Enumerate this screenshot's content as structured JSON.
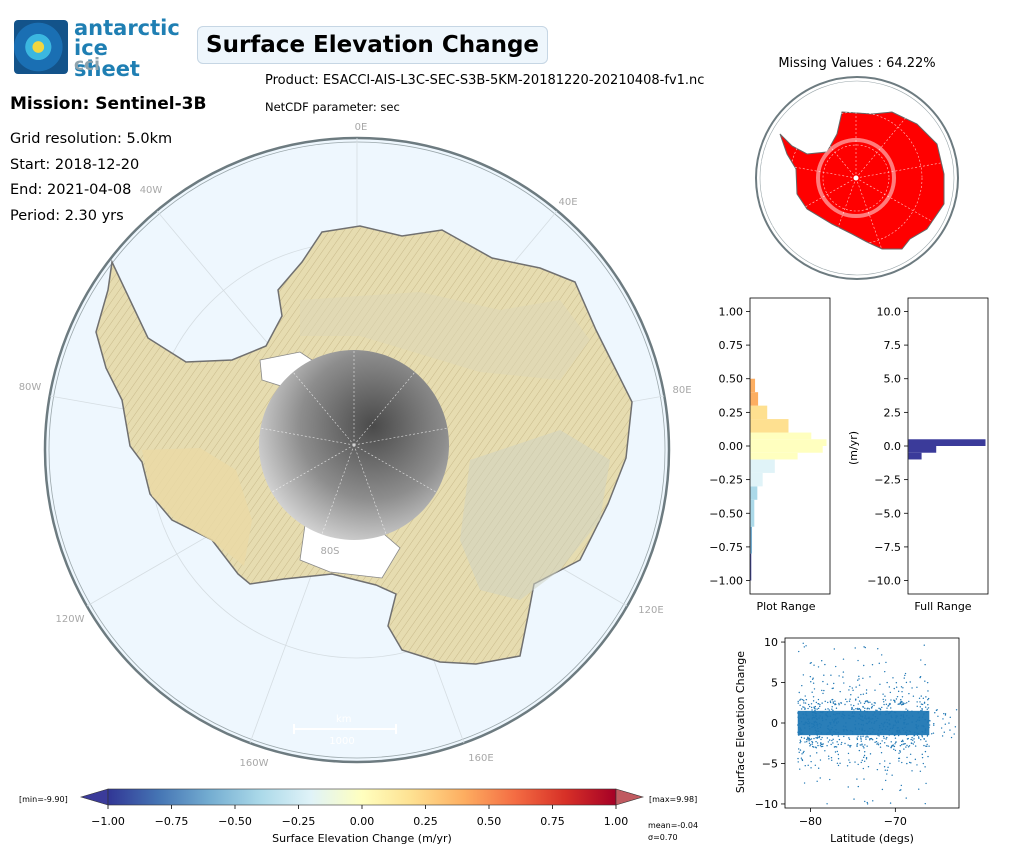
{
  "header": {
    "logo_line1": "antarctic",
    "logo_line2": "ice sheet",
    "logo_line3": "cci",
    "title": "Surface Elevation Change",
    "product": "Product: ESACCI-AIS-L3C-SEC-S3B-5KM-20181220-20210408-fv1.nc",
    "netcdf": "NetCDF parameter: sec"
  },
  "info": {
    "mission": "Mission: Sentinel-3B",
    "grid_resolution": "Grid resolution: 5.0km",
    "start": "Start: 2018-12-20",
    "end": "End: 2021-04-08",
    "period": "Period: 2.30 yrs"
  },
  "map": {
    "longitude_labels": [
      "0E",
      "40E",
      "80E",
      "120E",
      "160E",
      "160W",
      "120W",
      "80W",
      "40W"
    ],
    "latitude_label": "80S",
    "scalebar_unit": "km",
    "scalebar_value": "1000",
    "ocean_color": "#eef7fe",
    "missing_values_title": "Missing Values : 64.22%",
    "missing_color": "#ff0000"
  },
  "colorbar": {
    "ticks": [
      "−1.00",
      "−0.75",
      "−0.50",
      "−0.25",
      "0.00",
      "0.25",
      "0.50",
      "0.75",
      "1.00"
    ],
    "label": "Surface Elevation Change (m/yr)",
    "min_label": "[min=-9.90]",
    "max_label": "[max=9.98]",
    "mean_label": "mean=-0.04",
    "sigma_label": "σ=0.70",
    "colors": [
      "#313695",
      "#4575b4",
      "#74add1",
      "#abd9e9",
      "#e0f3f8",
      "#ffffbf",
      "#fee090",
      "#fdae61",
      "#f46d43",
      "#d73027",
      "#a50026"
    ]
  },
  "chart_data": [
    {
      "type": "histogram",
      "orientation": "horizontal",
      "xlabel": "Plot Range",
      "ylim": [
        -1.1,
        1.1
      ],
      "y_ticks": [
        "1.00",
        "0.75",
        "0.50",
        "0.25",
        "0.00",
        "−0.25",
        "−0.50",
        "−0.75",
        "−1.00"
      ],
      "bins": [
        -1.0,
        -0.8,
        -0.6,
        -0.4,
        -0.3,
        -0.2,
        -0.1,
        -0.05,
        0.0,
        0.05,
        0.1,
        0.2,
        0.3,
        0.4,
        0.5
      ],
      "relative_counts": [
        0.01,
        0.02,
        0.05,
        0.09,
        0.16,
        0.32,
        0.62,
        0.95,
        1.0,
        0.8,
        0.5,
        0.22,
        0.1,
        0.06,
        0.03
      ]
    },
    {
      "type": "histogram",
      "orientation": "horizontal",
      "xlabel": "Full Range",
      "ylabel": "(m/yr)",
      "ylim": [
        -11,
        11
      ],
      "y_ticks": [
        "10.0",
        "7.5",
        "5.0",
        "2.5",
        "0.0",
        "−2.5",
        "−5.0",
        "−7.5",
        "−10.0"
      ],
      "bar_color": "#3b3b9a",
      "bins": [
        -1.0,
        -0.5,
        0.0,
        0.5
      ],
      "relative_counts": [
        0.17,
        0.36,
        1.0,
        0.08
      ]
    },
    {
      "type": "scatter",
      "xlabel": "Latitude (degs)",
      "ylabel": "Surface Elevation Change",
      "x_ticks": [
        "−80",
        "−70"
      ],
      "y_ticks": [
        "10",
        "5",
        "0",
        "−5",
        "−10"
      ],
      "xlim": [
        -83,
        -62.5
      ],
      "ylim": [
        -10.5,
        10.5
      ],
      "point_color": "#1f77b4",
      "dense_band": {
        "x_range": [
          -81.5,
          -66
        ],
        "y_range": [
          -1.5,
          1.5
        ]
      }
    }
  ]
}
